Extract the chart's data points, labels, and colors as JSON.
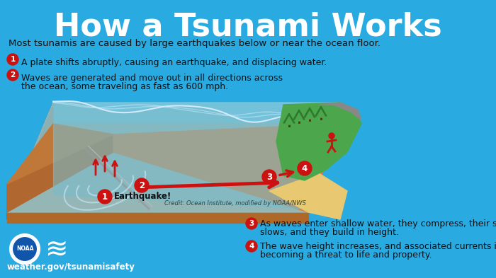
{
  "bg_color": "#29ABE2",
  "title": "How a Tsunami Works",
  "subtitle": "Most tsunamis are caused by large earthquakes below or near the ocean floor.",
  "title_color": "#FFFFFF",
  "subtitle_color": "#111111",
  "bullet_color": "#CC1111",
  "text_color": "#111111",
  "bullet1": "A plate shifts abruptly, causing an earthquake, and displacing water.",
  "bullet2_line1": "Waves are generated and move out in all directions across",
  "bullet2_line2": "the ocean, some traveling as fast as 600 mph.",
  "bullet3_line1": "As waves enter shallow water, they compress, their speed",
  "bullet3_line2": "slows, and they build in height.",
  "bullet4_line1": "The wave height increases, and associated currents intensify,",
  "bullet4_line2": "becoming a threat to life and property.",
  "credit": "Credit: Ocean Institute, modified by NOAA/NWS",
  "website": "weather.gov/tsunamisafety",
  "seafloor_color": "#C87030",
  "seafloor_side": "#A05020",
  "seafloor_front": "#B06828",
  "ocean_top": "#A8D8E8",
  "ocean_body": "#7BBDCC",
  "land_green": "#4CA64C",
  "land_dark": "#2D7A2D",
  "beach_color": "#E8C870",
  "mountain_color": "#888888",
  "wave_line": "#C8E4EE",
  "arrow_color": "#CC1111"
}
